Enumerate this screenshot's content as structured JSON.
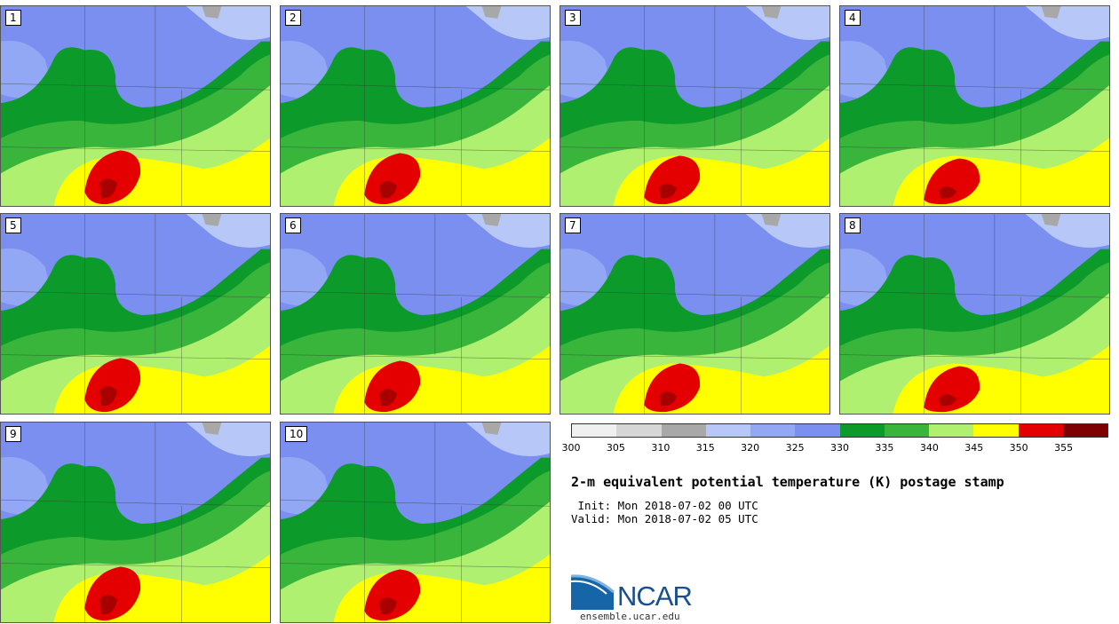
{
  "panels": [
    {
      "label": "1"
    },
    {
      "label": "2"
    },
    {
      "label": "3"
    },
    {
      "label": "4"
    },
    {
      "label": "5"
    },
    {
      "label": "6"
    },
    {
      "label": "7"
    },
    {
      "label": "8"
    },
    {
      "label": "9"
    },
    {
      "label": "10"
    }
  ],
  "colorbar": {
    "ticks": [
      "300",
      "305",
      "310",
      "315",
      "320",
      "325",
      "330",
      "335",
      "340",
      "345",
      "350",
      "355"
    ],
    "colors": [
      "#f0f0f0",
      "#d6d6d6",
      "#a8a8a8",
      "#b7c8f8",
      "#93a8f4",
      "#7b8ff0",
      "#0c9a2a",
      "#3ab53c",
      "#b0f070",
      "#ffff00",
      "#e50000",
      "#7f0000"
    ]
  },
  "title": "2-m equivalent potential temperature (K) postage stamp",
  "init": " Init: Mon 2018-07-02 00 UTC",
  "valid": "Valid: Mon 2018-07-02 05 UTC",
  "logo": {
    "text": "NCAR",
    "url": "ensemble.ucar.edu"
  }
}
